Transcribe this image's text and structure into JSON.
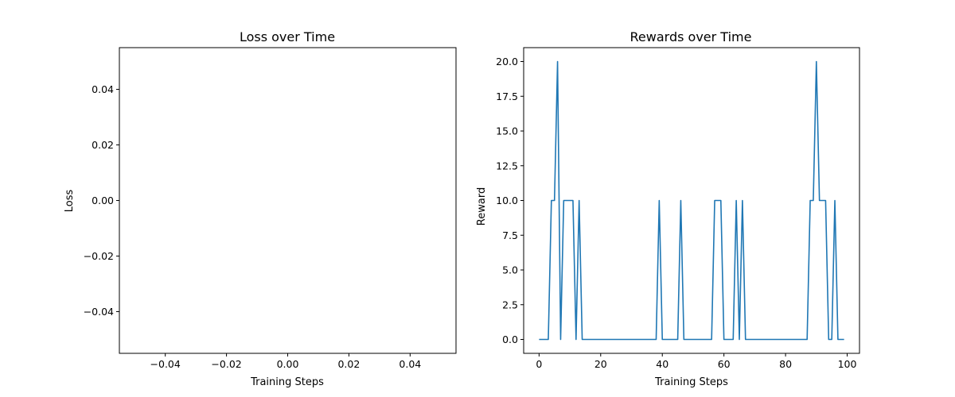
{
  "chart_data": [
    {
      "type": "line",
      "title": "Loss over Time",
      "xlabel": "Training Steps",
      "ylabel": "Loss",
      "xlim": [
        -0.055,
        0.055
      ],
      "ylim": [
        -0.055,
        0.055
      ],
      "xticks": [
        -0.04,
        -0.02,
        0.0,
        0.02,
        0.04
      ],
      "yticks": [
        -0.04,
        -0.02,
        0.0,
        0.02,
        0.04
      ],
      "xtick_labels": [
        "−0.04",
        "−0.02",
        "0.00",
        "0.02",
        "0.04"
      ],
      "ytick_labels": [
        "−0.04",
        "−0.02",
        "0.00",
        "0.02",
        "0.04"
      ],
      "grid": false,
      "series": [
        {
          "color": "#1f77b4",
          "x": [],
          "y": []
        }
      ]
    },
    {
      "type": "line",
      "title": "Rewards over Time",
      "xlabel": "Training Steps",
      "ylabel": "Reward",
      "xlim": [
        -5,
        104
      ],
      "ylim": [
        -1,
        21
      ],
      "xticks": [
        0,
        20,
        40,
        60,
        80,
        100
      ],
      "yticks": [
        0,
        2.5,
        5,
        7.5,
        10,
        12.5,
        15,
        17.5,
        20
      ],
      "xtick_labels": [
        "0",
        "20",
        "40",
        "60",
        "80",
        "100"
      ],
      "ytick_labels": [
        "0.0",
        "2.5",
        "5.0",
        "7.5",
        "10.0",
        "12.5",
        "15.0",
        "17.5",
        "20.0"
      ],
      "grid": false,
      "series": [
        {
          "color": "#1f77b4",
          "x": [
            0,
            1,
            2,
            3,
            4,
            5,
            6,
            7,
            8,
            9,
            10,
            11,
            12,
            13,
            14,
            15,
            16,
            17,
            18,
            19,
            20,
            21,
            22,
            23,
            24,
            25,
            26,
            27,
            28,
            29,
            30,
            31,
            32,
            33,
            34,
            35,
            36,
            37,
            38,
            39,
            40,
            41,
            42,
            43,
            44,
            45,
            46,
            47,
            48,
            49,
            50,
            51,
            52,
            53,
            54,
            55,
            56,
            57,
            58,
            59,
            60,
            61,
            62,
            63,
            64,
            65,
            66,
            67,
            68,
            69,
            70,
            71,
            72,
            73,
            74,
            75,
            76,
            77,
            78,
            79,
            80,
            81,
            82,
            83,
            84,
            85,
            86,
            87,
            88,
            89,
            90,
            91,
            92,
            93,
            94,
            95,
            96,
            97,
            98,
            99
          ],
          "y": [
            0,
            0,
            0,
            0,
            10,
            10,
            20,
            0,
            10,
            10,
            10,
            10,
            0,
            10,
            0,
            0,
            0,
            0,
            0,
            0,
            0,
            0,
            0,
            0,
            0,
            0,
            0,
            0,
            0,
            0,
            0,
            0,
            0,
            0,
            0,
            0,
            0,
            0,
            0,
            10,
            0,
            0,
            0,
            0,
            0,
            0,
            10,
            0,
            0,
            0,
            0,
            0,
            0,
            0,
            0,
            0,
            0,
            10,
            10,
            10,
            0,
            0,
            0,
            0,
            10,
            0,
            10,
            0,
            0,
            0,
            0,
            0,
            0,
            0,
            0,
            0,
            0,
            0,
            0,
            0,
            0,
            0,
            0,
            0,
            0,
            0,
            0,
            0,
            10,
            10,
            20,
            10,
            10,
            10,
            0,
            0,
            10,
            0,
            0,
            0
          ]
        }
      ]
    }
  ]
}
